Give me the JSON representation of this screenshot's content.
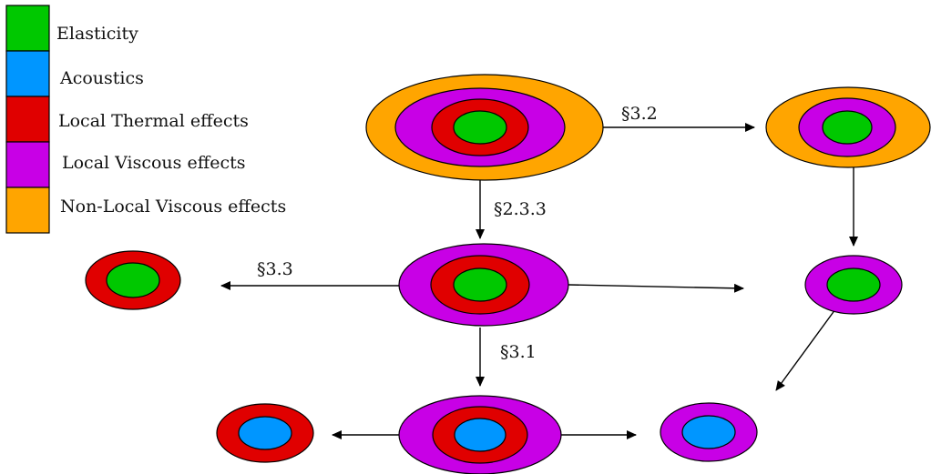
{
  "colors": {
    "elasticity": "#00c800",
    "acoustics": "#0096ff",
    "local_thermal": "#e00000",
    "local_viscous": "#c800e6",
    "nonlocal_viscous": "#ffa500"
  },
  "legend": [
    {
      "key": "elasticity",
      "label": "Elasticity"
    },
    {
      "key": "acoustics",
      "label": "Acoustics"
    },
    {
      "key": "local_thermal",
      "label": "Local Thermal effects"
    },
    {
      "key": "local_viscous",
      "label": "Local Viscous effects"
    },
    {
      "key": "nonlocal_viscous",
      "label": "Non-Local Viscous effects"
    }
  ],
  "nodes": [
    {
      "id": "full",
      "layers": [
        "nonlocal_viscous",
        "local_viscous",
        "local_thermal",
        "elasticity"
      ]
    },
    {
      "id": "nonlocal-no-thermal",
      "layers": [
        "nonlocal_viscous",
        "local_viscous",
        "elasticity"
      ]
    },
    {
      "id": "local-viscothermal",
      "layers": [
        "local_viscous",
        "local_thermal",
        "elasticity"
      ]
    },
    {
      "id": "thermal-elastic",
      "layers": [
        "local_thermal",
        "elasticity"
      ]
    },
    {
      "id": "viscous-elastic",
      "layers": [
        "local_viscous",
        "elasticity"
      ]
    },
    {
      "id": "viscothermal-acoustic",
      "layers": [
        "local_viscous",
        "local_thermal",
        "acoustics"
      ]
    },
    {
      "id": "thermal-acoustic",
      "layers": [
        "local_thermal",
        "acoustics"
      ]
    },
    {
      "id": "viscous-acoustic",
      "layers": [
        "local_viscous",
        "acoustics"
      ]
    }
  ],
  "edges": [
    {
      "from": "full",
      "to": "nonlocal-no-thermal",
      "label": "§3.2"
    },
    {
      "from": "full",
      "to": "local-viscothermal",
      "label": "§2.3.3"
    },
    {
      "from": "nonlocal-no-thermal",
      "to": "viscous-elastic",
      "label": ""
    },
    {
      "from": "local-viscothermal",
      "to": "thermal-elastic",
      "label": "§3.3"
    },
    {
      "from": "local-viscothermal",
      "to": "viscous-elastic",
      "label": ""
    },
    {
      "from": "local-viscothermal",
      "to": "viscothermal-acoustic",
      "label": "§3.1"
    },
    {
      "from": "viscous-elastic",
      "to": "viscous-acoustic",
      "label": ""
    },
    {
      "from": "viscothermal-acoustic",
      "to": "thermal-acoustic",
      "label": ""
    },
    {
      "from": "viscothermal-acoustic",
      "to": "viscous-acoustic",
      "label": ""
    }
  ]
}
